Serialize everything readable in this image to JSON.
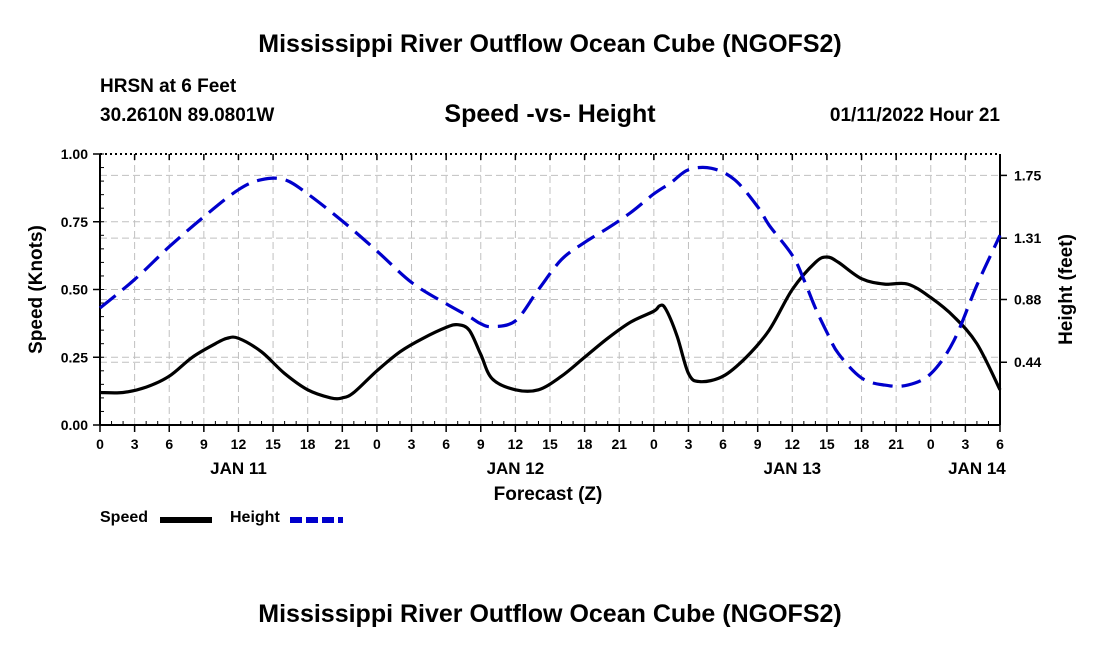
{
  "header": {
    "title_top": "Mississippi River Outflow Ocean Cube (NGOFS2)",
    "station": "HRSN at 6 Feet",
    "coords": "30.2610N  89.0801W",
    "subtitle": "Speed -vs- Height",
    "datetime": "01/11/2022 Hour 21"
  },
  "footer": {
    "title_bottom": "Mississippi River Outflow Ocean Cube (NGOFS2)"
  },
  "legend": {
    "speed_label": "Speed",
    "height_label": "Height"
  },
  "colors": {
    "speed": "#000000",
    "height": "#0000cc",
    "grid": "#c0c0c0"
  },
  "chart_data": {
    "type": "line",
    "title": "Speed -vs- Height",
    "xlabel": "Forecast (Z)",
    "ylabel": "Speed (Knots)",
    "ylabel_right": "Height (feet)",
    "x_unit": "hours since 2022-01-11 00Z",
    "xlim": [
      0,
      78
    ],
    "ylim": [
      0,
      1.0
    ],
    "ylim_right": [
      0.0,
      1.9
    ],
    "x_ticks": [
      0,
      3,
      6,
      9,
      12,
      15,
      18,
      21,
      24,
      27,
      30,
      33,
      36,
      39,
      42,
      45,
      48,
      51,
      54,
      57,
      60,
      63,
      66,
      69,
      72,
      75,
      78
    ],
    "x_tick_labels": [
      "0",
      "3",
      "6",
      "9",
      "12",
      "15",
      "18",
      "21",
      "0",
      "3",
      "6",
      "9",
      "12",
      "15",
      "18",
      "21",
      "0",
      "3",
      "6",
      "9",
      "12",
      "15",
      "18",
      "21",
      "0",
      "3",
      "6"
    ],
    "date_labels": [
      {
        "x": 12,
        "label": "JAN 11"
      },
      {
        "x": 36,
        "label": "JAN 12"
      },
      {
        "x": 60,
        "label": "JAN 13"
      },
      {
        "x": 76,
        "label": "JAN 14"
      }
    ],
    "y_ticks": [
      0.0,
      0.25,
      0.5,
      0.75,
      1.0
    ],
    "y_tick_labels": [
      "0.00",
      "0.25",
      "0.50",
      "0.75",
      "1.00"
    ],
    "y_ticks_right": [
      0.44,
      0.88,
      1.31,
      1.75
    ],
    "y_tick_labels_right": [
      "0.44",
      "0.88",
      "1.31",
      "1.75"
    ],
    "grid": true,
    "series": [
      {
        "name": "Speed",
        "axis": "left",
        "style": "solid",
        "x": [
          0,
          2,
          4,
          6,
          8,
          10,
          11,
          12,
          14,
          16,
          18,
          20,
          21,
          22,
          24,
          26,
          28,
          30,
          31,
          32,
          33,
          34,
          36,
          38,
          40,
          42,
          44,
          46,
          48,
          48.5,
          49,
          50,
          51,
          52,
          54,
          56,
          58,
          60,
          62,
          63,
          64,
          66,
          68,
          70,
          72,
          74,
          76,
          78
        ],
        "values": [
          0.12,
          0.12,
          0.14,
          0.18,
          0.25,
          0.3,
          0.32,
          0.32,
          0.27,
          0.19,
          0.13,
          0.1,
          0.1,
          0.12,
          0.2,
          0.27,
          0.32,
          0.36,
          0.37,
          0.35,
          0.26,
          0.17,
          0.13,
          0.13,
          0.18,
          0.25,
          0.32,
          0.38,
          0.42,
          0.44,
          0.43,
          0.33,
          0.19,
          0.16,
          0.18,
          0.25,
          0.35,
          0.5,
          0.6,
          0.62,
          0.6,
          0.54,
          0.52,
          0.52,
          0.47,
          0.4,
          0.3,
          0.13
        ]
      },
      {
        "name": "Height",
        "axis": "right",
        "style": "dashed",
        "x": [
          0,
          3,
          6,
          9,
          12,
          14,
          16,
          18,
          21,
          24,
          27,
          30,
          32,
          33,
          34,
          36,
          38,
          40,
          42,
          44,
          46,
          48,
          49.5,
          51,
          53,
          55,
          57,
          58,
          60,
          61,
          62,
          63,
          64,
          66,
          68,
          70,
          72,
          74,
          76,
          78
        ],
        "values": [
          0.82,
          1.02,
          1.25,
          1.46,
          1.65,
          1.72,
          1.72,
          1.62,
          1.43,
          1.22,
          1.0,
          0.85,
          0.76,
          0.71,
          0.69,
          0.73,
          0.95,
          1.16,
          1.28,
          1.38,
          1.49,
          1.62,
          1.7,
          1.79,
          1.8,
          1.72,
          1.53,
          1.4,
          1.19,
          1.02,
          0.82,
          0.65,
          0.5,
          0.33,
          0.28,
          0.28,
          0.36,
          0.59,
          0.98,
          1.33
        ]
      }
    ]
  }
}
